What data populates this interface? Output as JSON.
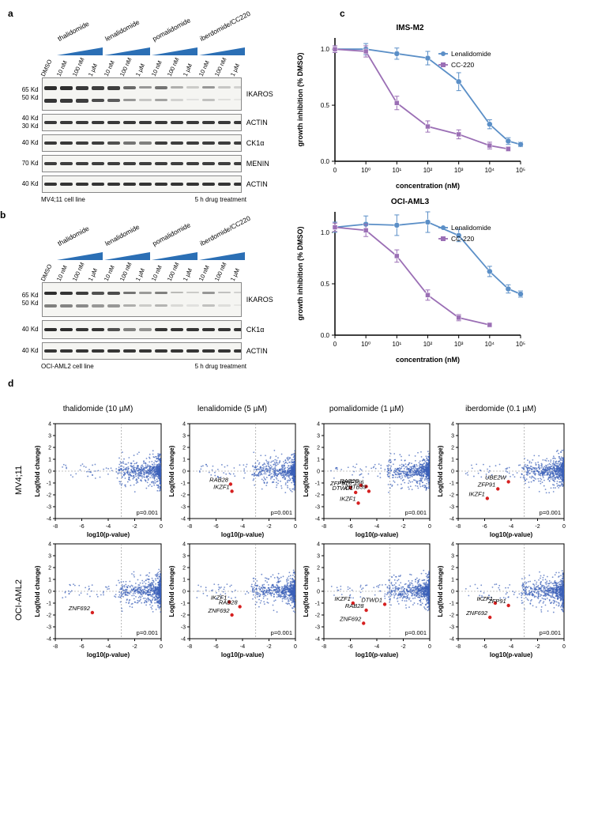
{
  "panels": {
    "a": "a",
    "b": "b",
    "c": "c",
    "d": "d"
  },
  "blots": {
    "drugs": [
      "thalidomide",
      "lenalidomide",
      "pomalidomide",
      "iberdomide/CC220"
    ],
    "concs": [
      "DMSO",
      "10 nM",
      "100 nM",
      "1 µM",
      "10 nM",
      "100 nM",
      "1 µM",
      "10 nM",
      "100 nM",
      "1 µM",
      "10 nM",
      "100 nM",
      "1 µM"
    ],
    "panelA": {
      "cell_line": "MV4;11 cell line",
      "treatment": "5 h drug treatment",
      "rows": [
        {
          "target": "IKAROS",
          "mw": [
            "65 Kd",
            "50 Kd"
          ],
          "height": 40,
          "bands": [
            [
              85,
              82
            ],
            [
              85,
              80
            ],
            [
              80,
              78
            ],
            [
              78,
              72
            ],
            [
              78,
              65
            ],
            [
              60,
              40
            ],
            [
              40,
              20
            ],
            [
              55,
              35
            ],
            [
              30,
              15
            ],
            [
              18,
              8
            ],
            [
              40,
              22
            ],
            [
              20,
              10
            ],
            [
              15,
              6
            ]
          ]
        },
        {
          "target": "ACTIN",
          "mw": [
            "40 Kd",
            "30 Kd"
          ],
          "height": 20,
          "bands": [
            [
              80
            ],
            [
              80
            ],
            [
              80
            ],
            [
              80
            ],
            [
              80
            ],
            [
              80
            ],
            [
              80
            ],
            [
              80
            ],
            [
              80
            ],
            [
              80
            ],
            [
              80
            ],
            [
              80
            ],
            [
              80
            ]
          ]
        },
        {
          "target": "CK1α",
          "mw": [
            "40 Kd"
          ],
          "height": 20,
          "bands": [
            [
              80
            ],
            [
              80
            ],
            [
              78
            ],
            [
              78
            ],
            [
              70
            ],
            [
              55
            ],
            [
              50
            ],
            [
              78
            ],
            [
              78
            ],
            [
              78
            ],
            [
              78
            ],
            [
              78
            ],
            [
              78
            ]
          ]
        },
        {
          "target": "MENIN",
          "mw": [
            "70 Kd"
          ],
          "height": 20,
          "bands": [
            [
              78
            ],
            [
              78
            ],
            [
              78
            ],
            [
              78
            ],
            [
              78
            ],
            [
              78
            ],
            [
              78
            ],
            [
              78
            ],
            [
              78
            ],
            [
              78
            ],
            [
              78
            ],
            [
              78
            ],
            [
              78
            ]
          ]
        },
        {
          "target": "ACTIN",
          "mw": [
            "40 Kd"
          ],
          "height": 20,
          "bands": [
            [
              82
            ],
            [
              82
            ],
            [
              82
            ],
            [
              82
            ],
            [
              82
            ],
            [
              82
            ],
            [
              82
            ],
            [
              82
            ],
            [
              82
            ],
            [
              82
            ],
            [
              82
            ],
            [
              82
            ],
            [
              82
            ]
          ]
        }
      ]
    },
    "panelB": {
      "cell_line": "OCI-AML2 cell line",
      "treatment": "5 h drug treatment",
      "rows": [
        {
          "target": "IKAROS",
          "mw": [
            "65 Kd",
            "50 Kd"
          ],
          "height": 42,
          "bands": [
            [
              85,
              50
            ],
            [
              82,
              48
            ],
            [
              78,
              45
            ],
            [
              70,
              40
            ],
            [
              72,
              40
            ],
            [
              55,
              30
            ],
            [
              38,
              18
            ],
            [
              50,
              28
            ],
            [
              25,
              12
            ],
            [
              18,
              8
            ],
            [
              40,
              22
            ],
            [
              22,
              10
            ],
            [
              15,
              6
            ]
          ]
        },
        {
          "target": "CK1α",
          "mw": [
            "40 Kd"
          ],
          "height": 22,
          "bands": [
            [
              85
            ],
            [
              85
            ],
            [
              82
            ],
            [
              82
            ],
            [
              70
            ],
            [
              50
            ],
            [
              42
            ],
            [
              82
            ],
            [
              82
            ],
            [
              82
            ],
            [
              82
            ],
            [
              82
            ],
            [
              82
            ]
          ]
        },
        {
          "target": "ACTIN",
          "mw": [
            "40 Kd"
          ],
          "height": 20,
          "bands": [
            [
              82
            ],
            [
              82
            ],
            [
              82
            ],
            [
              82
            ],
            [
              82
            ],
            [
              82
            ],
            [
              82
            ],
            [
              82
            ],
            [
              82
            ],
            [
              82
            ],
            [
              82
            ],
            [
              82
            ],
            [
              82
            ]
          ]
        }
      ]
    }
  },
  "charts": {
    "ims_m2": {
      "title": "IMS-M2",
      "xlabel": "concentration (nM)",
      "ylabel": "growth inhibition (% DMSO)",
      "xticks": [
        "0",
        "10⁰",
        "10¹",
        "10²",
        "10³",
        "10⁴",
        "10⁵"
      ],
      "yticks": [
        "0.0",
        "0.5",
        "1.0"
      ],
      "ylim": [
        0,
        1.1
      ],
      "series": [
        {
          "name": "Lenalidomide",
          "color": "#5b8fc7",
          "marker": "circle",
          "points": [
            [
              0,
              1.0,
              0.03
            ],
            [
              1,
              1.0,
              0.05
            ],
            [
              10,
              0.96,
              0.05
            ],
            [
              100,
              0.92,
              0.06
            ],
            [
              1000,
              0.71,
              0.08
            ],
            [
              10000,
              0.33,
              0.04
            ],
            [
              40000,
              0.18,
              0.03
            ],
            [
              100000,
              0.15,
              0.02
            ]
          ]
        },
        {
          "name": "CC-220",
          "color": "#9b6fb5",
          "marker": "square",
          "points": [
            [
              0,
              1.0,
              0.03
            ],
            [
              1,
              0.98,
              0.05
            ],
            [
              10,
              0.52,
              0.06
            ],
            [
              100,
              0.31,
              0.05
            ],
            [
              1000,
              0.24,
              0.04
            ],
            [
              10000,
              0.14,
              0.03
            ],
            [
              40000,
              0.11,
              0.02
            ]
          ]
        }
      ]
    },
    "oci_aml3": {
      "title": "OCI-AML3",
      "xlabel": "concentration (nM)",
      "ylabel": "growth inhibition (% DMSO)",
      "xticks": [
        "0",
        "10⁰",
        "10¹",
        "10²",
        "10³",
        "10⁴",
        "10⁵"
      ],
      "yticks": [
        "0.0",
        "0.5",
        "1.0"
      ],
      "ylim": [
        0,
        1.2
      ],
      "series": [
        {
          "name": "Lenalidomide",
          "color": "#5b8fc7",
          "marker": "circle",
          "points": [
            [
              0,
              1.05,
              0.05
            ],
            [
              1,
              1.08,
              0.08
            ],
            [
              10,
              1.07,
              0.1
            ],
            [
              100,
              1.1,
              0.1
            ],
            [
              1000,
              0.97,
              0.06
            ],
            [
              10000,
              0.62,
              0.05
            ],
            [
              40000,
              0.45,
              0.04
            ],
            [
              100000,
              0.4,
              0.03
            ]
          ]
        },
        {
          "name": "CC-220",
          "color": "#9b6fb5",
          "marker": "square",
          "points": [
            [
              0,
              1.05,
              0.04
            ],
            [
              1,
              1.02,
              0.06
            ],
            [
              10,
              0.77,
              0.06
            ],
            [
              100,
              0.39,
              0.05
            ],
            [
              1000,
              0.17,
              0.03
            ],
            [
              10000,
              0.1,
              0.02
            ]
          ]
        }
      ]
    }
  },
  "scatter": {
    "col_headers": [
      "thalidomide (10 µM)",
      "lenalidomide (5 µM)",
      "pomalidomide (1 µM)",
      "iberdomide (0.1 µM)"
    ],
    "row_headers": [
      "MV4;11",
      "OCI-AML2"
    ],
    "xlabel": "log10(p-value)",
    "ylabel": "Log(fold change)",
    "xlim": [
      -8,
      0
    ],
    "ylim": [
      -4,
      4
    ],
    "xticks": [
      -8,
      -6,
      -4,
      -2,
      0
    ],
    "yticks": [
      -4,
      -3,
      -2,
      -1,
      0,
      1,
      2,
      3,
      4
    ],
    "pvalue_line_x": -3,
    "pvalue_label": "p=0.001",
    "point_color": "#3b5fb8",
    "hit_color": "#d62020",
    "cells": {
      "mv411": [
        {
          "hits": [],
          "cloud": "dense_right"
        },
        {
          "hits": [
            {
              "label": "RAB28",
              "x": -4.9,
              "y": -1.1
            },
            {
              "label": "IKZF1",
              "x": -4.8,
              "y": -1.7
            }
          ],
          "cloud": "dense_right"
        },
        {
          "hits": [
            {
              "label": "ZFP91",
              "x": -6.0,
              "y": -1.4
            },
            {
              "label": "RAB28",
              "x": -5.2,
              "y": -1.2
            },
            {
              "label": "RNF166",
              "x": -4.8,
              "y": -1.3
            },
            {
              "label": "DTWD1",
              "x": -5.6,
              "y": -1.8
            },
            {
              "label": "ZBTB39",
              "x": -4.6,
              "y": -1.7
            },
            {
              "label": "IKZF1",
              "x": -5.4,
              "y": -2.7
            }
          ],
          "cloud": "dense_right"
        },
        {
          "hits": [
            {
              "label": "UBE2W",
              "x": -4.2,
              "y": -0.9
            },
            {
              "label": "ZFP91",
              "x": -5.0,
              "y": -1.5
            },
            {
              "label": "IKZF1",
              "x": -5.8,
              "y": -2.3
            }
          ],
          "cloud": "dense_right"
        }
      ],
      "ociaml2": [
        {
          "hits": [
            {
              "label": "ZNF692",
              "x": -5.2,
              "y": -1.8
            }
          ],
          "cloud": "dense_right"
        },
        {
          "hits": [
            {
              "label": "IKZF1",
              "x": -5.0,
              "y": -0.9
            },
            {
              "label": "RAB28",
              "x": -4.2,
              "y": -1.3
            },
            {
              "label": "ZNF692",
              "x": -4.8,
              "y": -2.0
            }
          ],
          "cloud": "dense_right"
        },
        {
          "hits": [
            {
              "label": "IKZF1",
              "x": -5.8,
              "y": -1.0
            },
            {
              "label": "DTWD1",
              "x": -3.4,
              "y": -1.1
            },
            {
              "label": "RAB28",
              "x": -4.8,
              "y": -1.6
            },
            {
              "label": "ZNF692",
              "x": -5.0,
              "y": -2.7
            }
          ],
          "cloud": "dense_right"
        },
        {
          "hits": [
            {
              "label": "IKZF1",
              "x": -5.2,
              "y": -1.0
            },
            {
              "label": "ZFP91",
              "x": -4.2,
              "y": -1.2
            },
            {
              "label": "ZNF692",
              "x": -5.6,
              "y": -2.2
            }
          ],
          "cloud": "dense_right"
        }
      ]
    }
  }
}
